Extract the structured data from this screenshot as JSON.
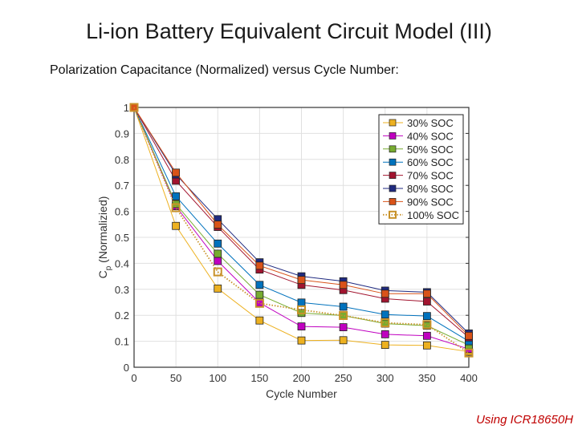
{
  "title": "Li-ion Battery Equivalent Circuit Model (III)",
  "subtitle": "Polarization Capacitance (Normalized) versus Cycle Number:",
  "footer": "Using ICR18650H",
  "chart_data": {
    "type": "line",
    "xlabel": "Cycle Number",
    "ylabel_main": "C",
    "ylabel_sub": "p",
    "ylabel_rest": " (Normalizied)",
    "xlim": [
      0,
      400
    ],
    "ylim": [
      0,
      1
    ],
    "xticks": [
      "0",
      "50",
      "100",
      "150",
      "200",
      "250",
      "300",
      "350",
      "400"
    ],
    "yticks": [
      "0",
      "0.1",
      "0.2",
      "0.3",
      "0.4",
      "0.5",
      "0.6",
      "0.7",
      "0.8",
      "0.9",
      "1"
    ],
    "grid": true,
    "legend_position": "top-right",
    "x": [
      0,
      50,
      100,
      150,
      200,
      250,
      300,
      350,
      400
    ],
    "series": [
      {
        "name": "30% SOC",
        "color": "#EDB120",
        "style": "solid",
        "values": [
          1,
          0.544,
          0.303,
          0.18,
          0.103,
          0.104,
          0.086,
          0.084,
          0.06
        ]
      },
      {
        "name": "40% SOC",
        "color": "#C000C0",
        "style": "solid",
        "values": [
          1,
          0.62,
          0.409,
          0.248,
          0.157,
          0.154,
          0.127,
          0.121,
          0.07
        ]
      },
      {
        "name": "50% SOC",
        "color": "#77AC30",
        "style": "solid",
        "values": [
          1,
          0.628,
          0.437,
          0.279,
          0.209,
          0.199,
          0.168,
          0.16,
          0.085
        ]
      },
      {
        "name": "60% SOC",
        "color": "#0072BD",
        "style": "solid",
        "values": [
          1,
          0.658,
          0.476,
          0.317,
          0.249,
          0.233,
          0.203,
          0.197,
          0.1
        ]
      },
      {
        "name": "70% SOC",
        "color": "#A2142F",
        "style": "solid",
        "values": [
          1,
          0.718,
          0.54,
          0.376,
          0.317,
          0.297,
          0.264,
          0.253,
          0.115
        ]
      },
      {
        "name": "80% SOC",
        "color": "#1F2A80",
        "style": "solid",
        "values": [
          1,
          0.742,
          0.57,
          0.404,
          0.35,
          0.331,
          0.295,
          0.289,
          0.13
        ]
      },
      {
        "name": "90% SOC",
        "color": "#D95319",
        "style": "solid",
        "values": [
          1,
          0.749,
          0.549,
          0.391,
          0.336,
          0.317,
          0.283,
          0.283,
          0.121
        ]
      },
      {
        "name": "100% SOC",
        "color": "#C8922A",
        "style": "dotted",
        "values": [
          1,
          0.614,
          0.367,
          0.246,
          0.221,
          0.199,
          0.171,
          0.164,
          0.055
        ]
      }
    ]
  }
}
